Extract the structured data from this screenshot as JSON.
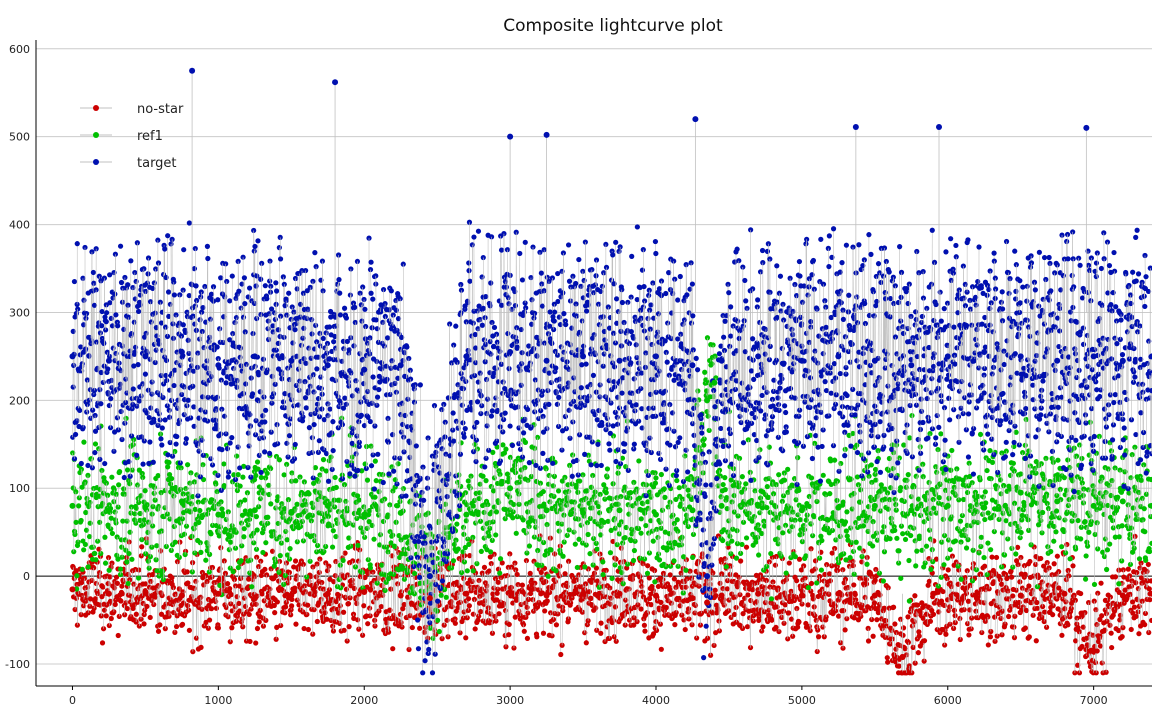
{
  "chart_data": {
    "type": "scatter",
    "title": "Composite lightcurve plot",
    "xlabel": "",
    "ylabel": "",
    "xlim": [
      -250,
      7400
    ],
    "ylim": [
      -125,
      610
    ],
    "x_ticks": [
      0,
      1000,
      2000,
      3000,
      4000,
      5000,
      6000,
      7000
    ],
    "y_ticks": [
      -100,
      0,
      100,
      200,
      300,
      400,
      500,
      600
    ],
    "grid": true,
    "legend_position": "top-left",
    "colors": {
      "no-star": "#cc0000",
      "ref1": "#00c000",
      "target": "#0010b0",
      "connector": "#c0c0c0",
      "zero_line": "#000000",
      "grid": "#cccccc"
    },
    "series": [
      {
        "name": "no-star",
        "x": [
          0,
          250,
          500,
          750,
          1000,
          1250,
          1500,
          1750,
          2000,
          2250,
          2450,
          2700,
          3000,
          3250,
          3500,
          3750,
          4000,
          4250,
          4350,
          4450,
          4700,
          5000,
          5250,
          5500,
          5690,
          5900,
          6200,
          6500,
          6800,
          7000,
          7200,
          7400
        ],
        "values": [
          -15,
          -20,
          -18,
          -22,
          -20,
          -25,
          -22,
          -20,
          -18,
          -22,
          -25,
          -20,
          -18,
          -22,
          -20,
          -20,
          -22,
          -25,
          -30,
          -22,
          -20,
          -22,
          -20,
          -22,
          -92,
          -20,
          -25,
          -22,
          -20,
          -85,
          -22,
          -20
        ]
      },
      {
        "name": "ref1",
        "x": [
          0,
          250,
          500,
          750,
          1000,
          1250,
          1500,
          1750,
          2000,
          2250,
          2450,
          2700,
          3000,
          3250,
          3500,
          3750,
          4000,
          4250,
          4350,
          4400,
          4450,
          4700,
          5000,
          5250,
          5500,
          5750,
          6000,
          6250,
          6500,
          6750,
          7000,
          7200,
          7400
        ],
        "values": [
          80,
          75,
          78,
          85,
          70,
          75,
          72,
          80,
          70,
          72,
          0,
          70,
          100,
          75,
          72,
          75,
          70,
          75,
          200,
          220,
          80,
          80,
          75,
          78,
          80,
          75,
          80,
          78,
          95,
          85,
          80,
          85,
          80
        ]
      },
      {
        "name": "target",
        "x": [
          0,
          250,
          500,
          750,
          1000,
          1250,
          1500,
          1750,
          2000,
          2250,
          2450,
          2700,
          3000,
          3250,
          3500,
          3750,
          4000,
          4250,
          4350,
          4450,
          4700,
          5000,
          5250,
          5500,
          5750,
          6000,
          6250,
          6500,
          6750,
          7000,
          7200,
          7400
        ],
        "values": [
          250,
          245,
          250,
          255,
          240,
          250,
          245,
          240,
          235,
          240,
          0,
          250,
          255,
          245,
          250,
          245,
          250,
          240,
          0,
          245,
          250,
          245,
          250,
          245,
          240,
          250,
          255,
          250,
          245,
          250,
          245,
          250
        ]
      }
    ],
    "annotated_outliers": {
      "target": [
        {
          "x": 820,
          "y": 575
        },
        {
          "x": 1800,
          "y": 562
        },
        {
          "x": 4270,
          "y": 520
        },
        {
          "x": 5370,
          "y": 511
        },
        {
          "x": 5940,
          "y": 511
        },
        {
          "x": 6950,
          "y": 510
        },
        {
          "x": 3000,
          "y": 500
        },
        {
          "x": 3250,
          "y": 502
        }
      ],
      "no-star": [
        {
          "x": 5690,
          "y": -92
        },
        {
          "x": 6980,
          "y": -85
        }
      ]
    }
  }
}
